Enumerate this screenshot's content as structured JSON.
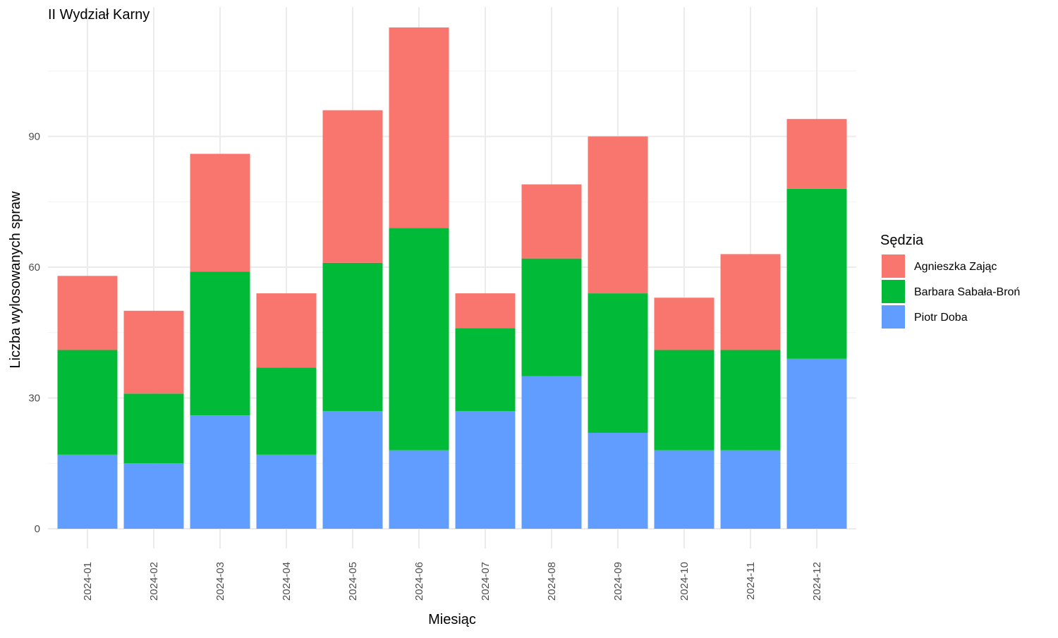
{
  "chart_data": {
    "type": "bar",
    "stacked": true,
    "title": "II Wydział Karny",
    "xlabel": "Miesiąc",
    "ylabel": "Liczba wylosowanych spraw",
    "categories": [
      "2024-01",
      "2024-02",
      "2024-03",
      "2024-04",
      "2024-05",
      "2024-06",
      "2024-07",
      "2024-08",
      "2024-09",
      "2024-10",
      "2024-11",
      "2024-12"
    ],
    "series": [
      {
        "name": "Piotr Doba",
        "color": "#619CFF",
        "values": [
          17,
          15,
          26,
          17,
          27,
          18,
          27,
          35,
          22,
          18,
          18,
          39
        ]
      },
      {
        "name": "Barbara Sabała-Broń",
        "color": "#00BA38",
        "values": [
          24,
          16,
          33,
          20,
          34,
          51,
          19,
          27,
          32,
          23,
          23,
          39
        ]
      },
      {
        "name": "Agnieszka Zając",
        "color": "#F8766D",
        "values": [
          17,
          19,
          27,
          17,
          35,
          46,
          8,
          17,
          36,
          12,
          22,
          16
        ]
      }
    ],
    "ylim": [
      0,
      120
    ],
    "yticks": [
      0,
      30,
      60,
      90
    ],
    "grid": true,
    "legend": {
      "title": "Sędzia",
      "position": "right",
      "order": [
        "Agnieszka Zając",
        "Barbara Sabała-Broń",
        "Piotr Doba"
      ]
    }
  }
}
